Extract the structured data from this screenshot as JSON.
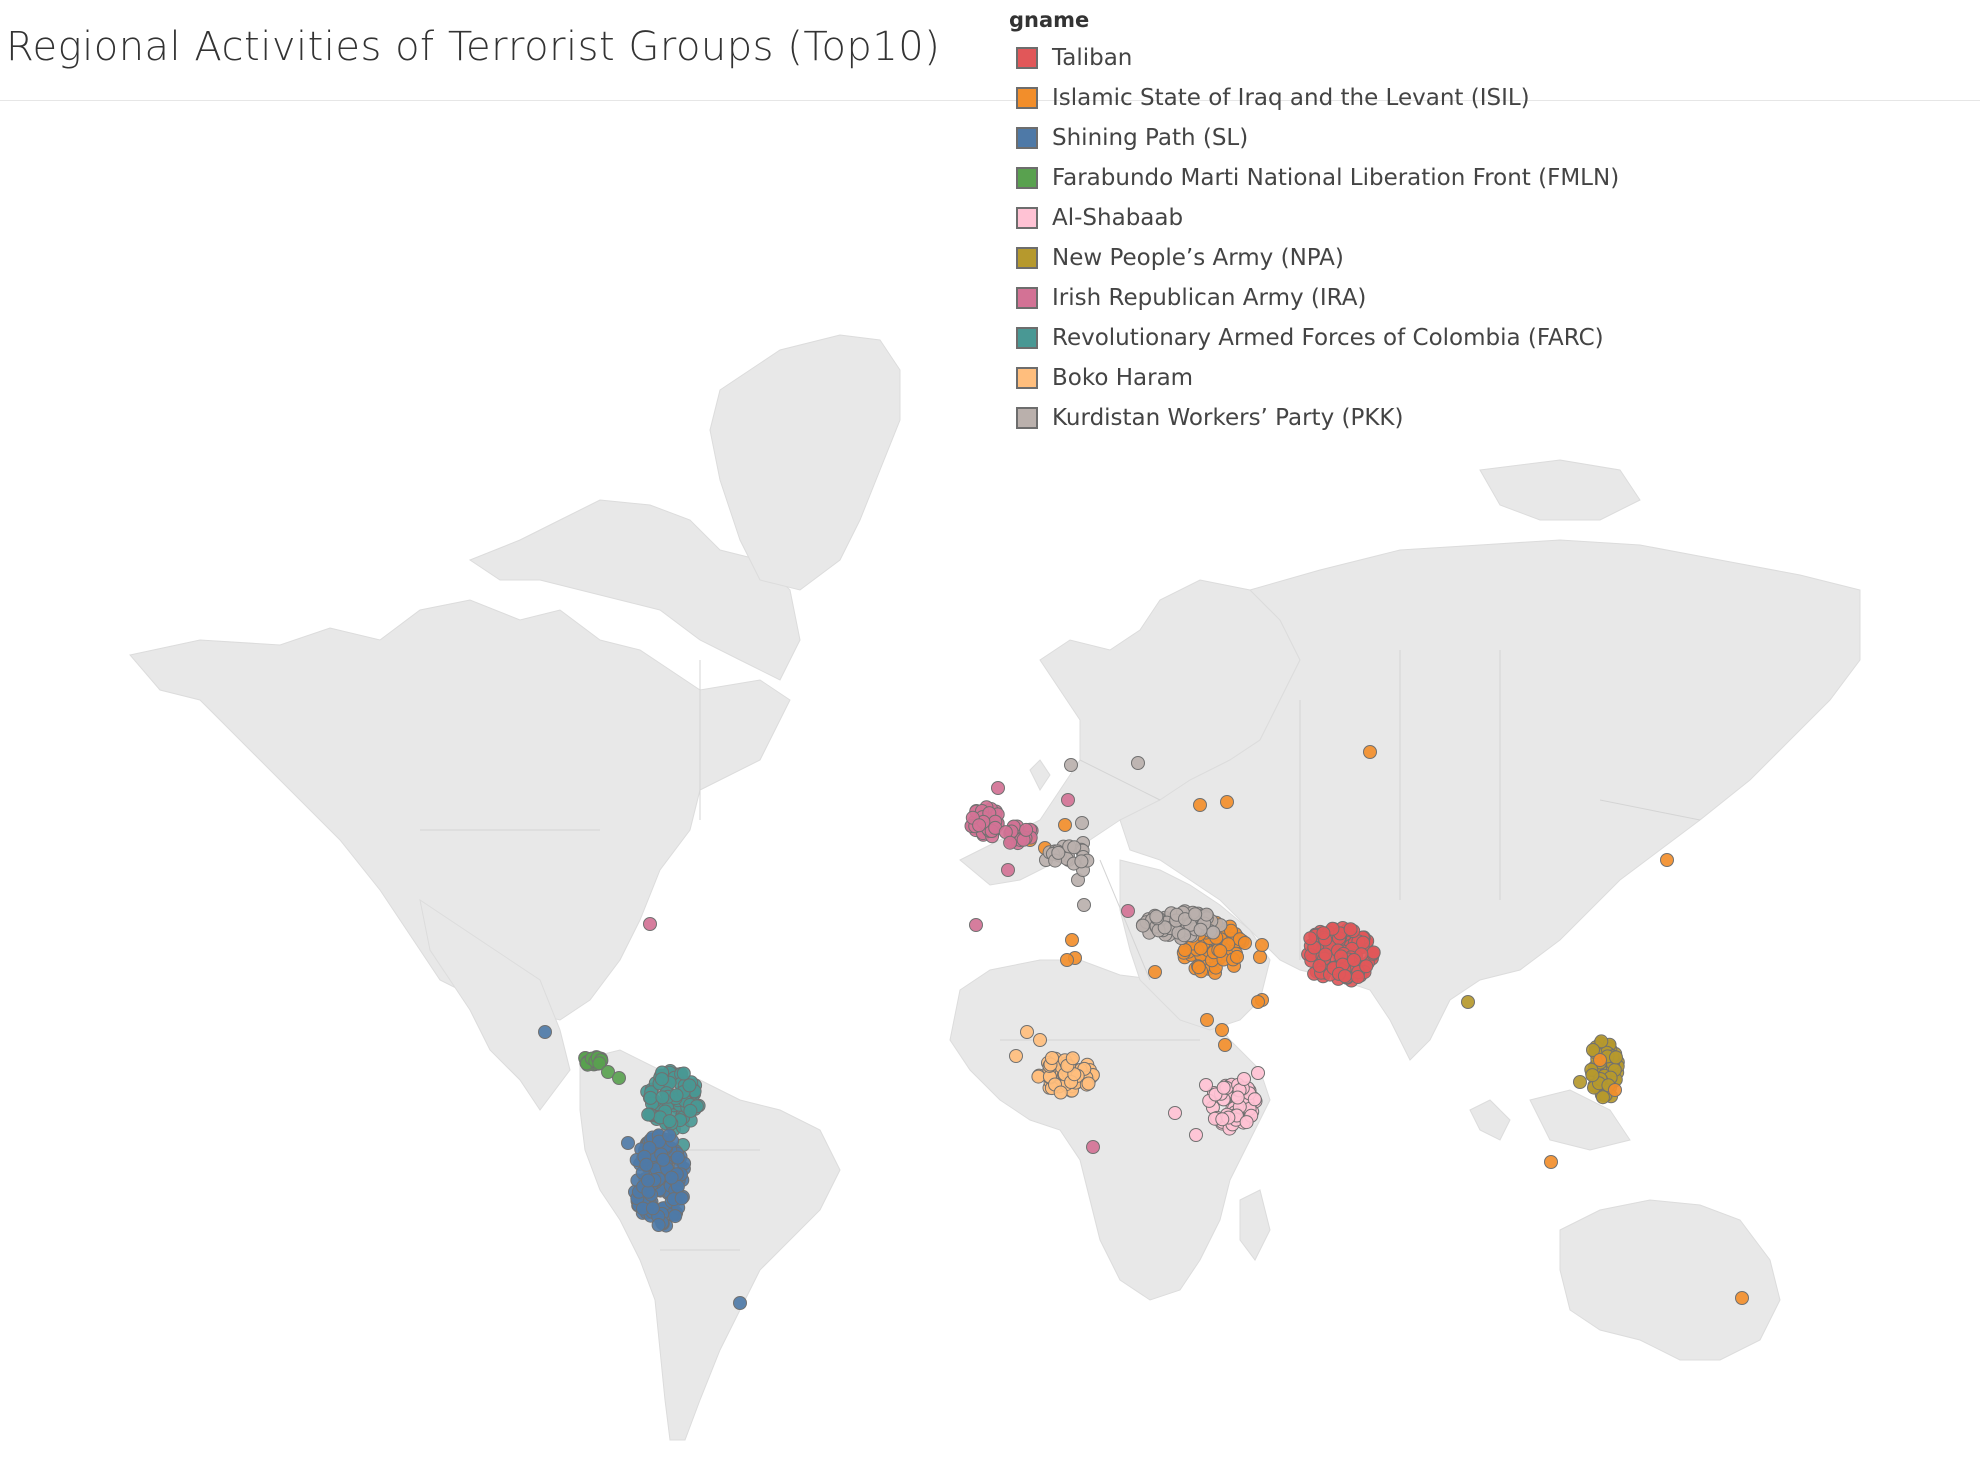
{
  "title": "Regional Activities of Terrorist Groups (Top10)",
  "legend": {
    "title": "gname",
    "items": [
      {
        "label": "Taliban",
        "color": "#e15759"
      },
      {
        "label": "Islamic State of Iraq and the Levant (ISIL)",
        "color": "#f28e2b"
      },
      {
        "label": "Shining Path (SL)",
        "color": "#4e79a7"
      },
      {
        "label": "Farabundo Marti National Liberation Front (FMLN)",
        "color": "#59a14f"
      },
      {
        "label": "Al-Shabaab",
        "color": "#ffc2d4"
      },
      {
        "label": "New People’s Army (NPA)",
        "color": "#b6992d"
      },
      {
        "label": "Irish Republican Army (IRA)",
        "color": "#d37295"
      },
      {
        "label": "Revolutionary Armed Forces of Colombia (FARC)",
        "color": "#499894"
      },
      {
        "label": "Boko Haram",
        "color": "#ffbe7d"
      },
      {
        "label": "Kurdistan Workers’ Party (PKK)",
        "color": "#bab0ac"
      }
    ]
  },
  "map": {
    "projection": "mercator",
    "land_color": "#e8e8e8",
    "border_color": "#d4d4d4"
  }
}
